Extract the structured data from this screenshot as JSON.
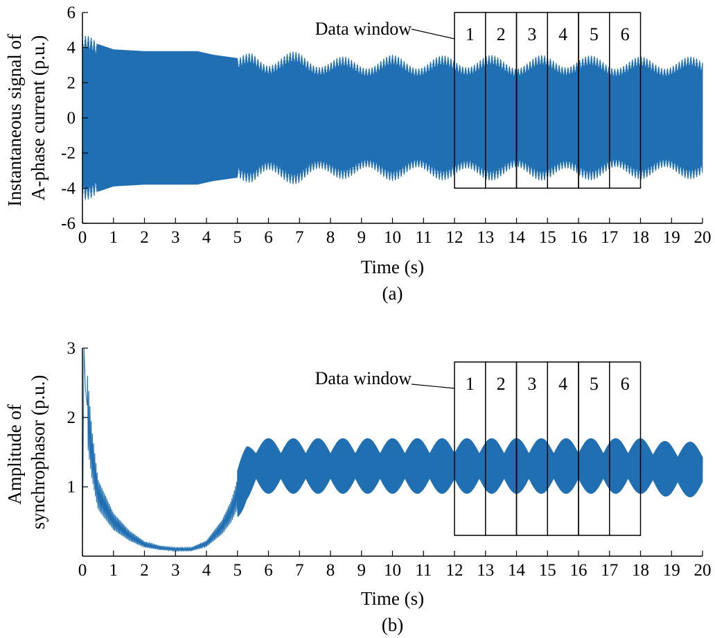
{
  "chart_data": [
    {
      "id": "a",
      "type": "line",
      "caption": "(a)",
      "xlabel": "Time (s)",
      "ylabel_lines": [
        "Instantaneous signal of",
        "A-phase current (p.u.)"
      ],
      "xlim": [
        0,
        20
      ],
      "ylim": [
        -6,
        6
      ],
      "xticks": [
        0,
        1,
        2,
        3,
        4,
        5,
        6,
        7,
        8,
        9,
        10,
        11,
        12,
        13,
        14,
        15,
        16,
        17,
        18,
        19,
        20
      ],
      "yticks": [
        -6,
        -4,
        -2,
        0,
        2,
        4,
        6
      ],
      "ytick_labels": [
        "-6",
        "-4",
        "-2",
        "0",
        "2",
        "4",
        "6"
      ],
      "grid": false,
      "color": "#1f6fb2",
      "series": [
        {
          "kind": "oscillation",
          "envelope_t": [
            0,
            0.1,
            0.5,
            1,
            2,
            3,
            3.7,
            4.2,
            5,
            5.5,
            6,
            7,
            8,
            9,
            10,
            11,
            12,
            13,
            14,
            15,
            16,
            17,
            18,
            19,
            20
          ],
          "envelope_amp": [
            5,
            5,
            4.2,
            3.9,
            3.8,
            3.8,
            3.8,
            3.6,
            3.4,
            3.9,
            3.7,
            3.8,
            3.5,
            3.5,
            3.6,
            3.5,
            3.6,
            3.6,
            3.5,
            3.6,
            3.6,
            3.5,
            3.5,
            3.5,
            3.5
          ],
          "dense_interval": [
            0.5,
            5.0
          ]
        }
      ],
      "annotation": {
        "text": "Data window",
        "boxes": [
          {
            "label": "1",
            "x0": 12,
            "x1": 13
          },
          {
            "label": "2",
            "x0": 13,
            "x1": 14
          },
          {
            "label": "3",
            "x0": 14,
            "x1": 15
          },
          {
            "label": "4",
            "x0": 15,
            "x1": 16
          },
          {
            "label": "5",
            "x0": 16,
            "x1": 17
          },
          {
            "label": "6",
            "x0": 17,
            "x1": 18
          }
        ],
        "y_bottom": -4,
        "y_top": 6
      }
    },
    {
      "id": "b",
      "type": "line",
      "caption": "(b)",
      "xlabel": "Time (s)",
      "ylabel_lines": [
        "Amplitude of",
        "synchrophasor (p.u.)"
      ],
      "xlim": [
        0,
        20
      ],
      "ylim": [
        0,
        3
      ],
      "xticks": [
        0,
        1,
        2,
        3,
        4,
        5,
        6,
        7,
        8,
        9,
        10,
        11,
        12,
        13,
        14,
        15,
        16,
        17,
        18,
        19,
        20
      ],
      "yticks": [
        1,
        2,
        3
      ],
      "ytick_labels": [
        "1",
        "2",
        "3"
      ],
      "grid": false,
      "color": "#1f6fb2",
      "series": [
        {
          "kind": "amplitude",
          "center_t": [
            0,
            0.05,
            0.1,
            0.3,
            0.5,
            1,
            1.5,
            2,
            2.5,
            3,
            3.5,
            4,
            4.5,
            4.8,
            5,
            5.3,
            5.6,
            6,
            7,
            8,
            9,
            10,
            11,
            12,
            13,
            14,
            15,
            16,
            17,
            18,
            19,
            20
          ],
          "center_v": [
            0,
            3,
            2.4,
            1.5,
            0.9,
            0.5,
            0.3,
            0.17,
            0.12,
            0.1,
            0.1,
            0.18,
            0.42,
            0.65,
            0.9,
            1.2,
            1.3,
            1.3,
            1.3,
            1.3,
            1.3,
            1.3,
            1.3,
            1.3,
            1.3,
            1.3,
            1.3,
            1.3,
            1.3,
            1.3,
            1.25,
            1.25
          ],
          "ripple_start": 5,
          "ripple_period_s": 0.8,
          "ripple_amp": 0.4
        }
      ],
      "annotation": {
        "text": "Data window",
        "boxes": [
          {
            "label": "1",
            "x0": 12,
            "x1": 13
          },
          {
            "label": "2",
            "x0": 13,
            "x1": 14
          },
          {
            "label": "3",
            "x0": 14,
            "x1": 15
          },
          {
            "label": "4",
            "x0": 15,
            "x1": 16
          },
          {
            "label": "5",
            "x0": 16,
            "x1": 17
          },
          {
            "label": "6",
            "x0": 17,
            "x1": 18
          }
        ],
        "y_bottom": 0.3,
        "y_top": 2.8
      }
    }
  ]
}
